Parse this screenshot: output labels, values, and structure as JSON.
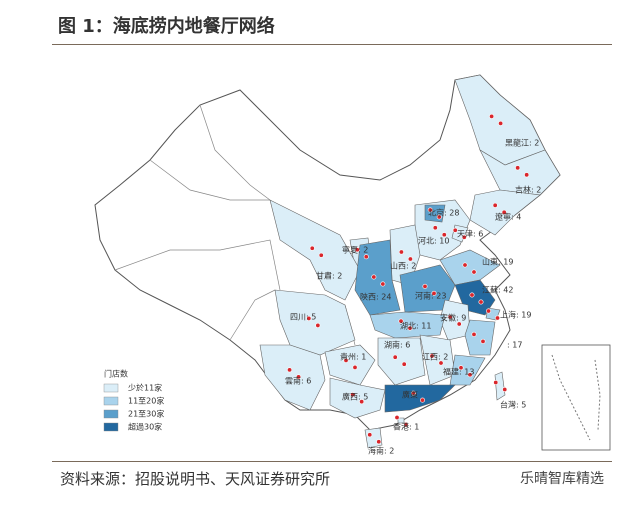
{
  "header": {
    "title": "图 1：海底捞内地餐厅网络"
  },
  "map": {
    "legend": {
      "title": "门店数",
      "tiers": [
        {
          "label": "少於11家",
          "color": "#dbeef8"
        },
        {
          "label": "11至20家",
          "color": "#a9d3ec"
        },
        {
          "label": "21至30家",
          "color": "#5b9fcb"
        },
        {
          "label": "超過30家",
          "color": "#22689f"
        }
      ]
    },
    "regions": [
      {
        "label": "黑龍江: 2",
        "color": "#dbeef8"
      },
      {
        "label": "吉林: 2",
        "color": "#dbeef8"
      },
      {
        "label": "遼寧: 4",
        "color": "#dbeef8"
      },
      {
        "label": "河北: 10",
        "color": "#dbeef8"
      },
      {
        "label": "北京: 28",
        "color": "#5b9fcb"
      },
      {
        "label": "天津: 6",
        "color": "#dbeef8"
      },
      {
        "label": "山西: 2",
        "color": "#dbeef8"
      },
      {
        "label": "寧夏: 2",
        "color": "#dbeef8"
      },
      {
        "label": "甘肅: 2",
        "color": "#dbeef8"
      },
      {
        "label": "陝西: 24",
        "color": "#5b9fcb"
      },
      {
        "label": "河南: 23",
        "color": "#5b9fcb"
      },
      {
        "label": "山東: 19",
        "color": "#a9d3ec"
      },
      {
        "label": "江蘇: 42",
        "color": "#22689f"
      },
      {
        "label": "安徽: 9",
        "color": "#dbeef8"
      },
      {
        "label": "上海: 19",
        "color": "#a9d3ec"
      },
      {
        "label": "湖北: 11",
        "color": "#a9d3ec"
      },
      {
        "label": "四川: 5",
        "color": "#dbeef8"
      },
      {
        "label": "貴州: 1",
        "color": "#dbeef8"
      },
      {
        "label": "湖南: 6",
        "color": "#dbeef8"
      },
      {
        "label": "江西: 2",
        "color": "#dbeef8"
      },
      {
        "label": ": 17",
        "color": "#a9d3ec"
      },
      {
        "label": "福建: 13",
        "color": "#a9d3ec"
      },
      {
        "label": "雲南: 6",
        "color": "#dbeef8"
      },
      {
        "label": "廣西: 5",
        "color": "#dbeef8"
      },
      {
        "label": "廣東",
        "color": "#22689f"
      },
      {
        "label": "香港: 1",
        "color": "#dbeef8"
      },
      {
        "label": "海南: 2",
        "color": "#dbeef8"
      },
      {
        "label": "台灣: 5",
        "color": "#dbeef8"
      }
    ]
  },
  "footer": {
    "source": "资料来源：招股说明书、天风证券研究所",
    "watermark": "乐晴智库精选"
  }
}
